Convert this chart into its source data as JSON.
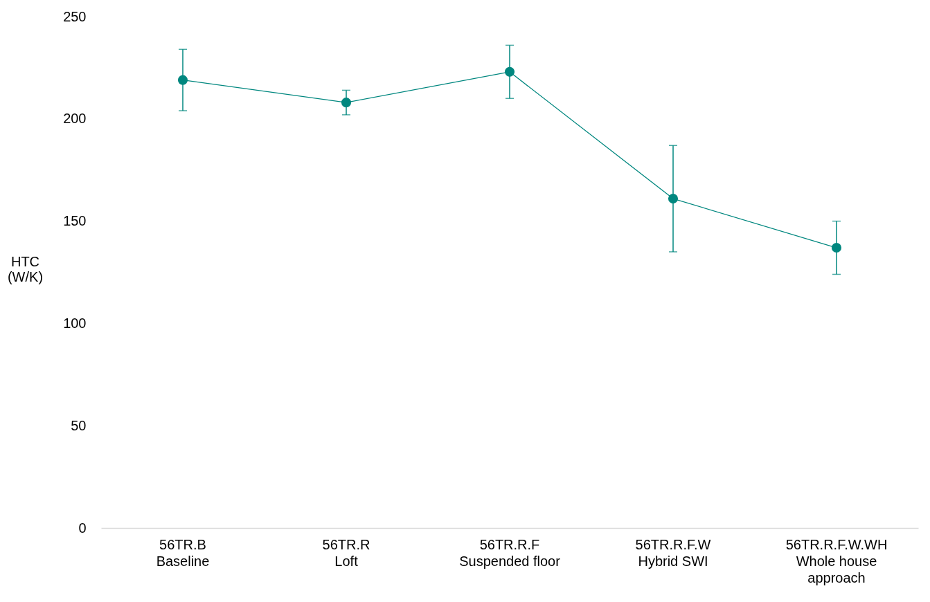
{
  "chart_data": {
    "type": "line",
    "ylabel": "HTC\n(W/K)",
    "categories": [
      "56TR.B\nBaseline",
      "56TR.R\nLoft",
      "56TR.R.F\nSuspended floor",
      "56TR.R.F.W\nHybrid SWI",
      "56TR.R.F.W.WH\nWhole house\napproach"
    ],
    "series": [
      {
        "color": "#00877f",
        "values": [
          219,
          208,
          223,
          161,
          137
        ],
        "errors": [
          [
            204,
            234
          ],
          [
            202,
            214
          ],
          [
            210,
            236
          ],
          [
            135,
            187
          ],
          [
            124,
            150
          ]
        ]
      }
    ],
    "ylim": [
      0,
      250
    ],
    "yticks": [
      0,
      50,
      100,
      150,
      200,
      250
    ],
    "grid": false,
    "marker": "circle",
    "line_style": "solid"
  }
}
